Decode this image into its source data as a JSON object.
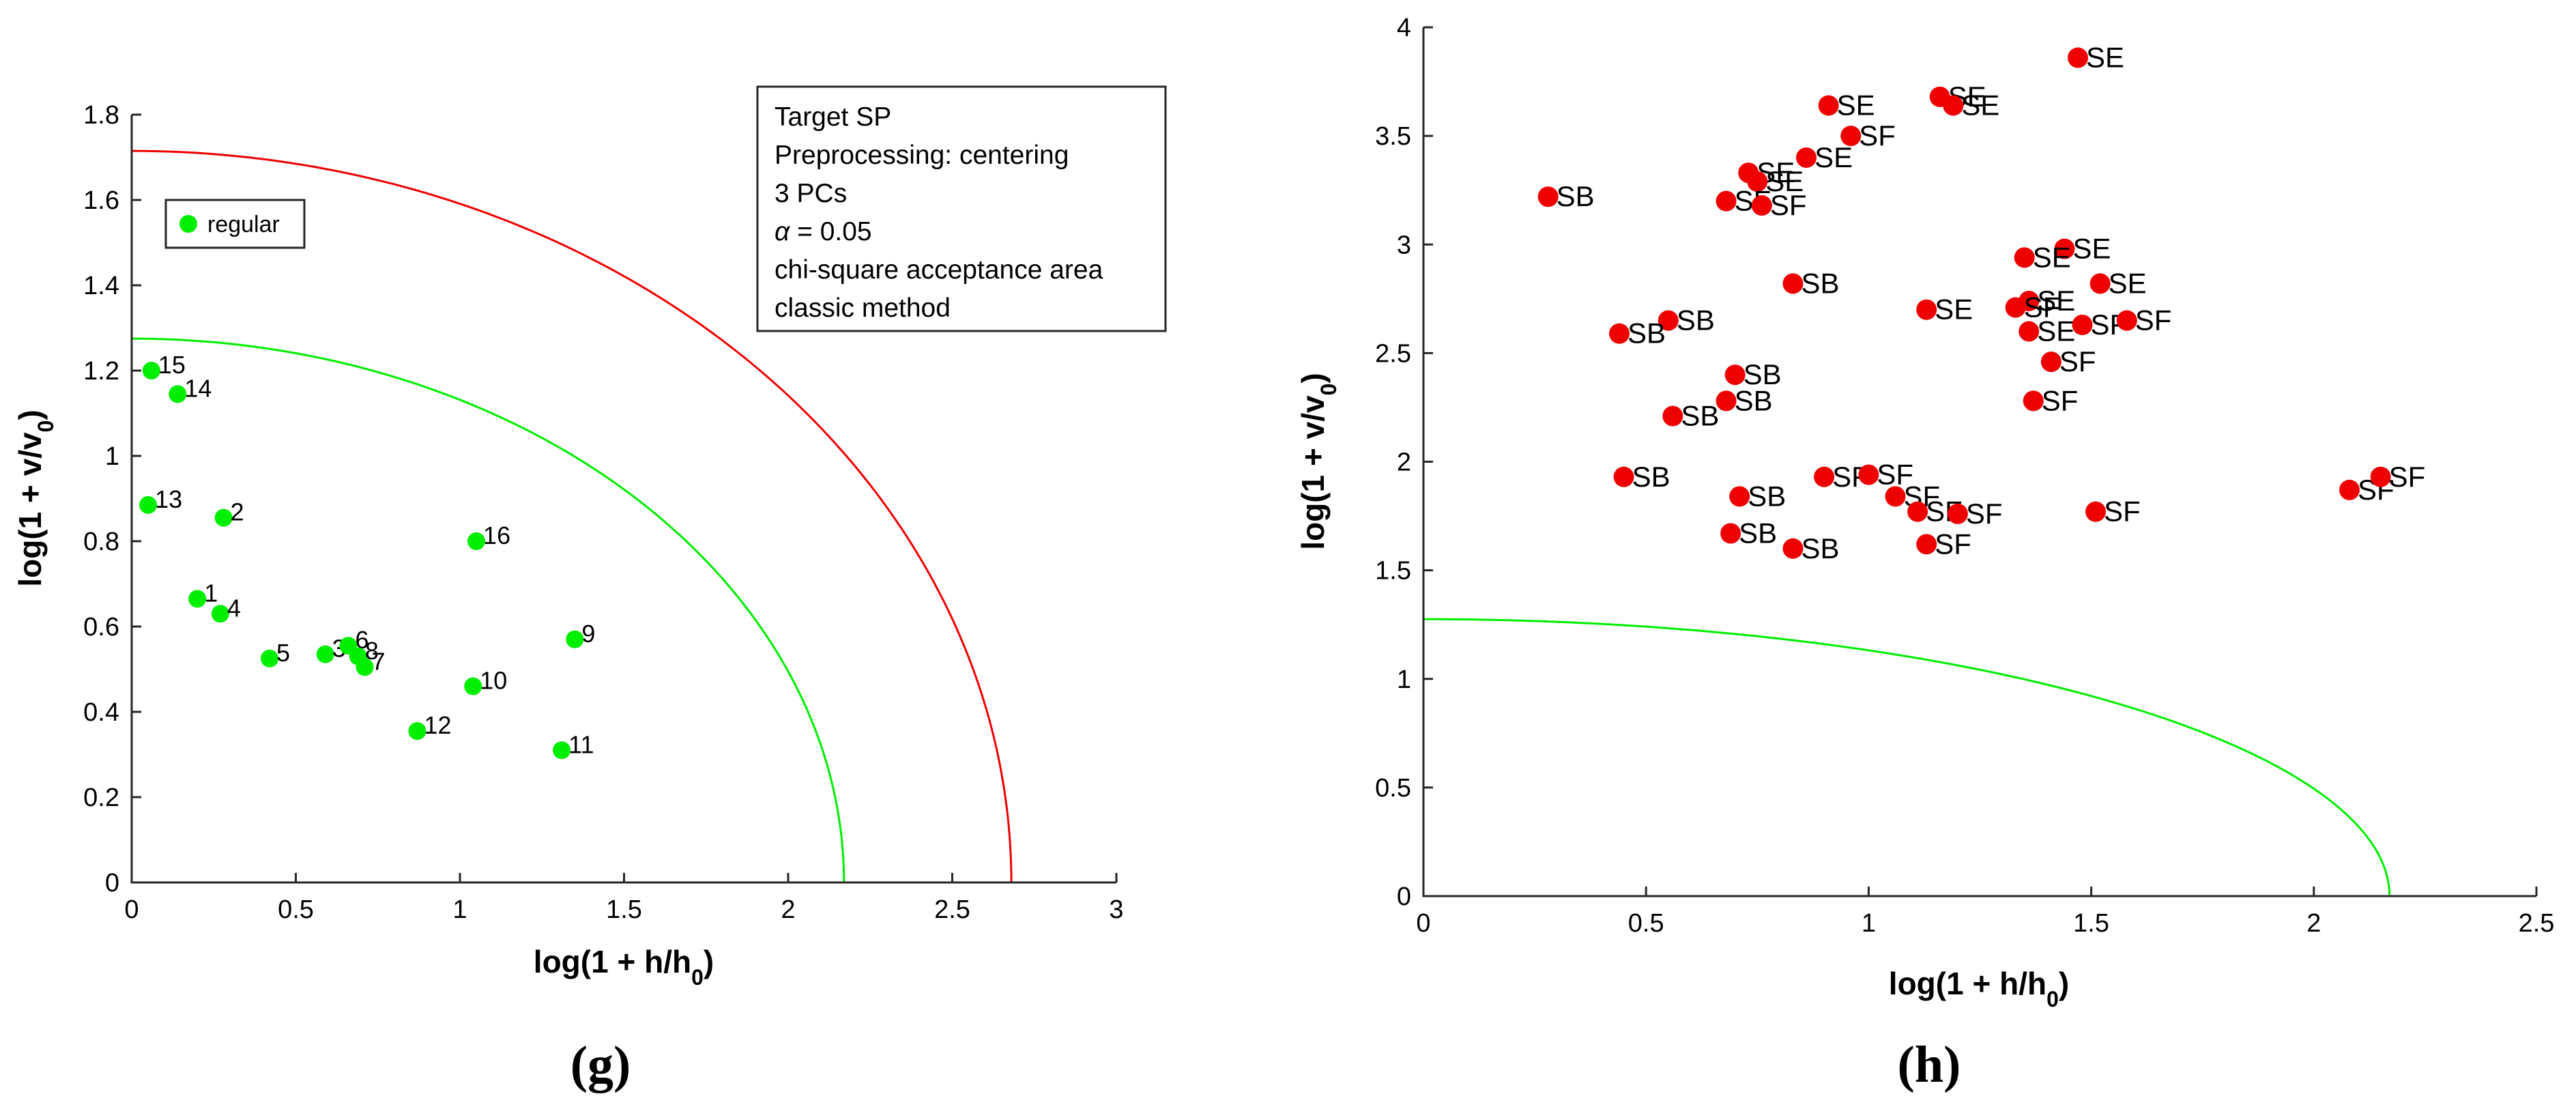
{
  "chart_data": [
    {
      "id": "g",
      "type": "scatter",
      "caption": "(g)",
      "xlabel_main": "log(1 + h/h",
      "xlabel_sub": "0",
      "xlabel_close": ")",
      "ylabel_main": "log(1 + v/v",
      "ylabel_sub": "0",
      "ylabel_close": ")",
      "xlim": [
        0,
        3
      ],
      "ylim": [
        0,
        1.8
      ],
      "xticks": [
        0,
        0.5,
        1,
        1.5,
        2,
        2.5,
        3
      ],
      "xtick_labels": [
        "0",
        "0.5",
        "1",
        "1.5",
        "2",
        "2.5",
        "3"
      ],
      "yticks": [
        0,
        0.2,
        0.4,
        0.6,
        0.8,
        1,
        1.2,
        1.4,
        1.6,
        1.8
      ],
      "ytick_labels": [
        "0",
        "0.2",
        "0.4",
        "0.6",
        "0.8",
        "1",
        "1.2",
        "1.4",
        "1.6",
        "1.8"
      ],
      "legend": {
        "label": "regular",
        "color": "#00ee00",
        "position": "top-left"
      },
      "info_box": {
        "position": "top-right",
        "lines": [
          "Target SP",
          "Preprocessing: centering",
          "3 PCs",
          "chi-square acceptance area",
          "classic method"
        ],
        "alpha_symbol": "α",
        "alpha_rest": " = 0.05"
      },
      "curves": [
        {
          "name": "inner-boundary",
          "color": "#00ee00",
          "x_intercept": 2.17,
          "y_intercept": 1.275
        },
        {
          "name": "outer-boundary",
          "color": "#ee0000",
          "x_intercept": 2.68,
          "y_intercept": 1.715
        }
      ],
      "point_color": "#00ee00",
      "points": [
        {
          "label": "1",
          "x": 0.2,
          "y": 0.665
        },
        {
          "label": "2",
          "x": 0.28,
          "y": 0.855
        },
        {
          "label": "3",
          "x": 0.59,
          "y": 0.535
        },
        {
          "label": "4",
          "x": 0.27,
          "y": 0.63
        },
        {
          "label": "5",
          "x": 0.42,
          "y": 0.525
        },
        {
          "label": "6",
          "x": 0.66,
          "y": 0.555
        },
        {
          "label": "7",
          "x": 0.71,
          "y": 0.505
        },
        {
          "label": "8",
          "x": 0.69,
          "y": 0.53
        },
        {
          "label": "9",
          "x": 1.35,
          "y": 0.57
        },
        {
          "label": "10",
          "x": 1.04,
          "y": 0.46
        },
        {
          "label": "11",
          "x": 1.31,
          "y": 0.31
        },
        {
          "label": "12",
          "x": 0.87,
          "y": 0.355
        },
        {
          "label": "13",
          "x": 0.05,
          "y": 0.885
        },
        {
          "label": "14",
          "x": 0.14,
          "y": 1.145
        },
        {
          "label": "15",
          "x": 0.06,
          "y": 1.2
        },
        {
          "label": "16",
          "x": 1.05,
          "y": 0.8
        }
      ]
    },
    {
      "id": "h",
      "type": "scatter",
      "caption": "(h)",
      "xlabel_main": "log(1 + h/h",
      "xlabel_sub": "0",
      "xlabel_close": ")",
      "ylabel_main": "log(1 + v/v",
      "ylabel_sub": "0",
      "ylabel_close": ")",
      "xlim": [
        0,
        2.5
      ],
      "ylim": [
        0,
        4
      ],
      "xticks": [
        0,
        0.5,
        1,
        1.5,
        2,
        2.5
      ],
      "xtick_labels": [
        "0",
        "0.5",
        "1",
        "1.5",
        "2",
        "2.5"
      ],
      "yticks": [
        0,
        0.5,
        1,
        1.5,
        2,
        2.5,
        3,
        3.5,
        4
      ],
      "ytick_labels": [
        "0",
        "0.5",
        "1",
        "1.5",
        "2",
        "2.5",
        "3",
        "3.5",
        "4"
      ],
      "curves": [
        {
          "name": "inner-boundary",
          "color": "#00ee00",
          "x_intercept": 2.17,
          "y_intercept": 1.275
        }
      ],
      "point_color": "#ee0000",
      "points": [
        {
          "label": "SE",
          "x": 1.47,
          "y": 3.86
        },
        {
          "label": "SE",
          "x": 0.91,
          "y": 3.64
        },
        {
          "label": "SE",
          "x": 1.16,
          "y": 3.68
        },
        {
          "label": "SE",
          "x": 1.19,
          "y": 3.64
        },
        {
          "label": "SE",
          "x": 0.86,
          "y": 3.4
        },
        {
          "label": "SE",
          "x": 0.73,
          "y": 3.33
        },
        {
          "label": "SE",
          "x": 0.75,
          "y": 3.29
        },
        {
          "label": "SE",
          "x": 1.44,
          "y": 2.98
        },
        {
          "label": "SE",
          "x": 1.35,
          "y": 2.94
        },
        {
          "label": "SE",
          "x": 1.52,
          "y": 2.82
        },
        {
          "label": "SE",
          "x": 1.13,
          "y": 2.7
        },
        {
          "label": "SE",
          "x": 1.36,
          "y": 2.74
        },
        {
          "label": "SE",
          "x": 1.36,
          "y": 2.6
        },
        {
          "label": "SF",
          "x": 0.96,
          "y": 3.5
        },
        {
          "label": "SF",
          "x": 0.68,
          "y": 3.2
        },
        {
          "label": "SF",
          "x": 0.76,
          "y": 3.18
        },
        {
          "label": "SF",
          "x": 1.33,
          "y": 2.71
        },
        {
          "label": "SF",
          "x": 1.48,
          "y": 2.63
        },
        {
          "label": "SF",
          "x": 1.58,
          "y": 2.65
        },
        {
          "label": "SF",
          "x": 1.41,
          "y": 2.46
        },
        {
          "label": "SF",
          "x": 1.37,
          "y": 2.28
        },
        {
          "label": "SF",
          "x": 0.9,
          "y": 1.93
        },
        {
          "label": "SF",
          "x": 1.0,
          "y": 1.94
        },
        {
          "label": "SF",
          "x": 1.06,
          "y": 1.84
        },
        {
          "label": "SF",
          "x": 1.11,
          "y": 1.77
        },
        {
          "label": "SF",
          "x": 1.2,
          "y": 1.76
        },
        {
          "label": "SF",
          "x": 1.13,
          "y": 1.62
        },
        {
          "label": "SF",
          "x": 1.51,
          "y": 1.77
        },
        {
          "label": "SF",
          "x": 2.08,
          "y": 1.87
        },
        {
          "label": "SF",
          "x": 2.15,
          "y": 1.93
        },
        {
          "label": "SB",
          "x": 0.28,
          "y": 3.22
        },
        {
          "label": "SB",
          "x": 0.83,
          "y": 2.82
        },
        {
          "label": "SB",
          "x": 0.55,
          "y": 2.65
        },
        {
          "label": "SB",
          "x": 0.44,
          "y": 2.59
        },
        {
          "label": "SB",
          "x": 0.7,
          "y": 2.4
        },
        {
          "label": "SB",
          "x": 0.68,
          "y": 2.28
        },
        {
          "label": "SB",
          "x": 0.56,
          "y": 2.21
        },
        {
          "label": "SB",
          "x": 0.45,
          "y": 1.93
        },
        {
          "label": "SB",
          "x": 0.71,
          "y": 1.84
        },
        {
          "label": "SB",
          "x": 0.69,
          "y": 1.67
        },
        {
          "label": "SB",
          "x": 0.83,
          "y": 1.6
        }
      ]
    }
  ]
}
